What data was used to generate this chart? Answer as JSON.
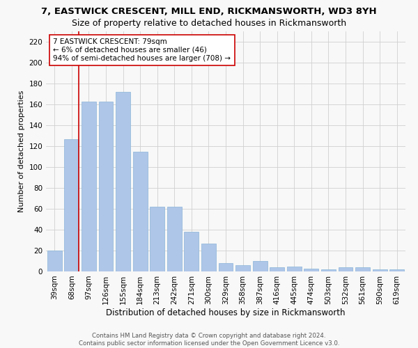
{
  "title": "7, EASTWICK CRESCENT, MILL END, RICKMANSWORTH, WD3 8YH",
  "subtitle": "Size of property relative to detached houses in Rickmansworth",
  "xlabel": "Distribution of detached houses by size in Rickmansworth",
  "ylabel": "Number of detached properties",
  "footer_line1": "Contains HM Land Registry data © Crown copyright and database right 2024.",
  "footer_line2": "Contains public sector information licensed under the Open Government Licence v3.0.",
  "categories": [
    "39sqm",
    "68sqm",
    "97sqm",
    "126sqm",
    "155sqm",
    "184sqm",
    "213sqm",
    "242sqm",
    "271sqm",
    "300sqm",
    "329sqm",
    "358sqm",
    "387sqm",
    "416sqm",
    "445sqm",
    "474sqm",
    "503sqm",
    "532sqm",
    "561sqm",
    "590sqm",
    "619sqm"
  ],
  "values": [
    20,
    127,
    163,
    163,
    172,
    115,
    62,
    62,
    38,
    27,
    8,
    6,
    10,
    4,
    5,
    3,
    2,
    4,
    4,
    2,
    2
  ],
  "bar_color": "#aec6e8",
  "bar_edge_color": "#8ab4d8",
  "property_line_color": "#cc0000",
  "property_line_x": 1.4,
  "annotation_text": "7 EASTWICK CRESCENT: 79sqm\n← 6% of detached houses are smaller (46)\n94% of semi-detached houses are larger (708) →",
  "annotation_box_color": "#ffffff",
  "annotation_border_color": "#cc0000",
  "ylim": [
    0,
    230
  ],
  "yticks": [
    0,
    20,
    40,
    60,
    80,
    100,
    120,
    140,
    160,
    180,
    200,
    220
  ],
  "grid_color": "#d0d0d0",
  "background_color": "#f8f8f8",
  "title_fontsize": 9.5,
  "subtitle_fontsize": 9,
  "ylabel_fontsize": 8,
  "xlabel_fontsize": 8.5,
  "tick_fontsize": 7.5,
  "annotation_fontsize": 7.5,
  "footer_fontsize": 6.2,
  "footer_color": "#555555"
}
